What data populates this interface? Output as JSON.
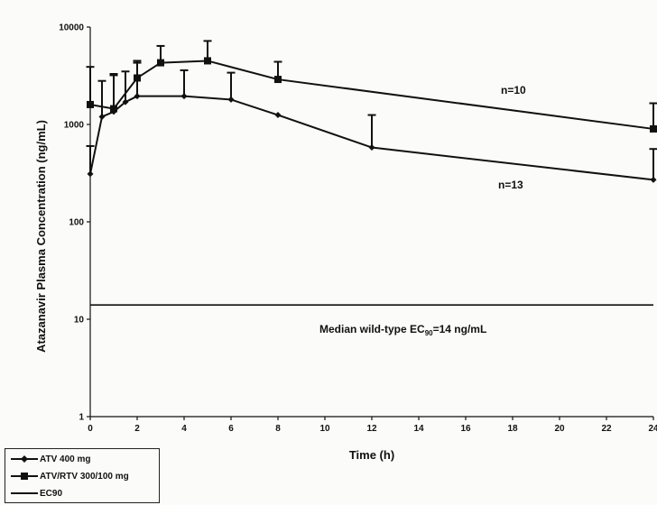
{
  "chart_data": {
    "type": "line",
    "xlabel": "Time (h)",
    "ylabel": "Atazanavir Plasma Concentration (ng/mL)",
    "x_ticks": [
      0,
      2,
      4,
      6,
      8,
      10,
      12,
      14,
      16,
      18,
      20,
      22,
      24
    ],
    "y_ticks": [
      {
        "value": 1,
        "label": "1"
      },
      {
        "value": 10,
        "label": "10"
      },
      {
        "value": 100,
        "label": "100"
      },
      {
        "value": 1000,
        "label": "1000"
      },
      {
        "value": 10000,
        "label": "10000"
      }
    ],
    "xlim": [
      0,
      24
    ],
    "ylim": [
      1,
      10000
    ],
    "yscale": "log",
    "series": [
      {
        "name": "ATV 400 mg",
        "marker": "diamond",
        "color": "#111111",
        "x": [
          0,
          0.5,
          1,
          1.5,
          2,
          4,
          6,
          8,
          12,
          24
        ],
        "y": [
          310,
          1200,
          1350,
          1700,
          1950,
          1950,
          1800,
          1250,
          580,
          270
        ],
        "error_upper": [
          600,
          2800,
          3200,
          3500,
          4300,
          3600,
          3400,
          null,
          1250,
          560
        ]
      },
      {
        "name": "ATV/RTV 300/100 mg",
        "marker": "square",
        "color": "#111111",
        "x": [
          0,
          1,
          2,
          3,
          5,
          8,
          24
        ],
        "y": [
          1600,
          1450,
          3000,
          4300,
          4500,
          2900,
          900
        ],
        "error_upper": [
          3900,
          3300,
          4500,
          6400,
          7200,
          4400,
          1650
        ]
      },
      {
        "name": "EC90",
        "marker": "none",
        "color": "#111111",
        "x": [
          0,
          24
        ],
        "y": [
          14,
          14
        ]
      }
    ],
    "annotations": {
      "n10": "n=10",
      "n13": "n=13",
      "ec_prefix": "Median wild-type EC",
      "ec_sub": "90",
      "ec_suffix": "=14 ng/mL"
    },
    "legend": {
      "position": "bottom-left",
      "entries": [
        "ATV 400 mg",
        "ATV/RTV 300/100 mg",
        "EC90"
      ]
    }
  }
}
